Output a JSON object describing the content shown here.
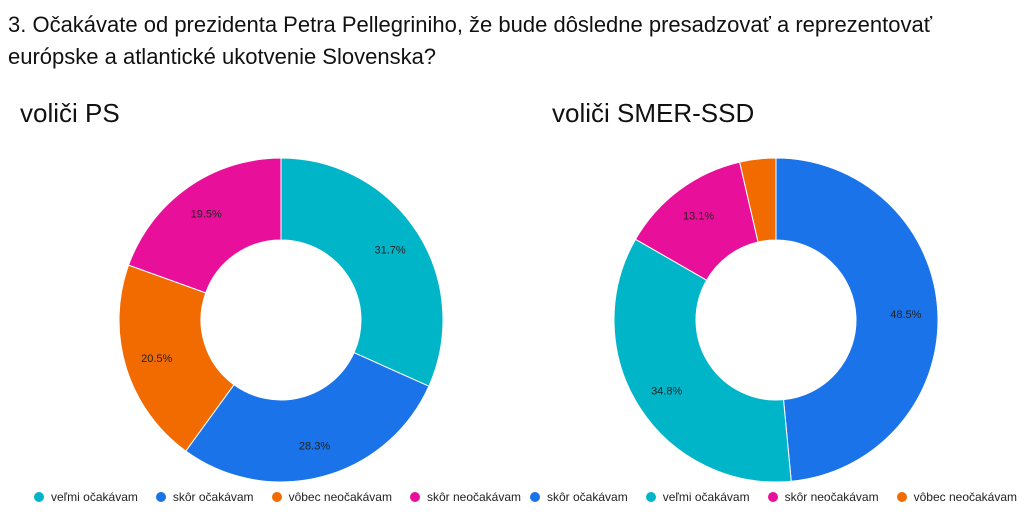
{
  "question": "3. Očakávate od prezidenta Petra Pellegriniho, že bude dôsledne presadzovať a reprezentovať európske a atlantické ukotvenie Slovenska?",
  "chart_data": [
    {
      "type": "pie",
      "title": "voliči PS",
      "donut": true,
      "series": [
        {
          "name": "veľmi očakávam",
          "value": 31.7,
          "label": "31.7%",
          "color": "#00b5c8"
        },
        {
          "name": "skôr očakávam",
          "value": 28.3,
          "label": "28.3%",
          "color": "#1a73e8"
        },
        {
          "name": "vôbec neočakávam",
          "value": 20.5,
          "label": "20.5%",
          "color": "#f26b00"
        },
        {
          "name": "skôr neočakávam",
          "value": 19.5,
          "label": "19.5%",
          "color": "#e8109a"
        }
      ],
      "legend_position": "bottom"
    },
    {
      "type": "pie",
      "title": "voliči SMER-SSD",
      "donut": true,
      "series": [
        {
          "name": "skôr očakávam",
          "value": 48.5,
          "label": "48.5%",
          "color": "#1a73e8"
        },
        {
          "name": "veľmi očakávam",
          "value": 34.8,
          "label": "34.8%",
          "color": "#00b5c8"
        },
        {
          "name": "skôr neočakávam",
          "value": 13.1,
          "label": "13.1%",
          "color": "#e8109a"
        },
        {
          "name": "vôbec neočakávam",
          "value": 3.6,
          "label": "",
          "color": "#f26b00"
        }
      ],
      "legend_position": "bottom"
    }
  ]
}
